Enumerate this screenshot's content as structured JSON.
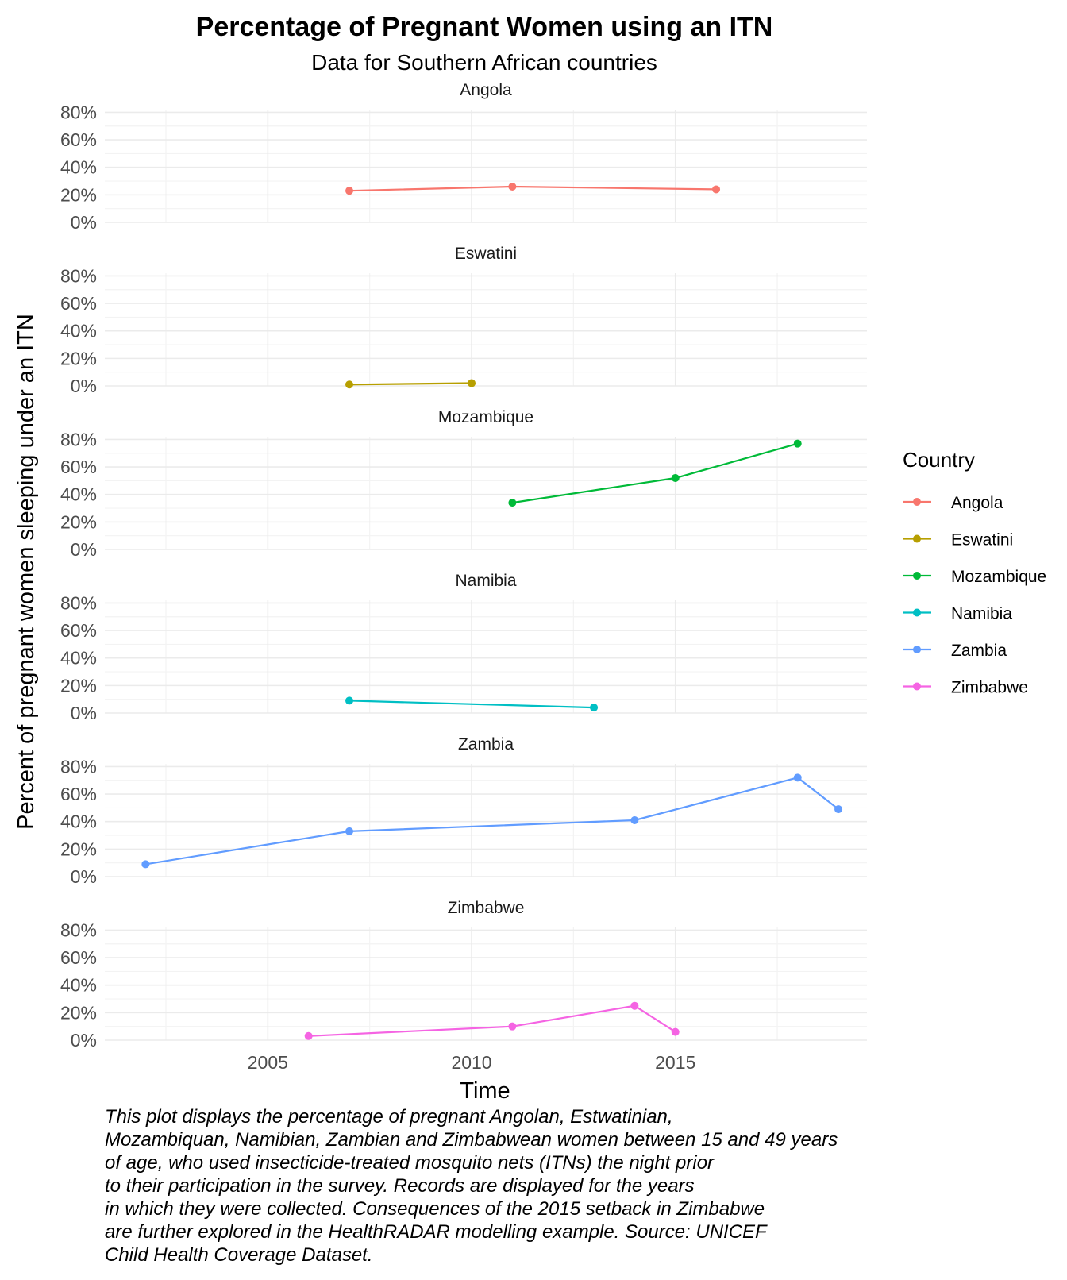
{
  "chart_data": {
    "type": "line",
    "title": "Percentage of Pregnant Women using an ITN",
    "subtitle": "Data for Southern African countries",
    "xlabel": "Time",
    "ylabel": "Percent of pregnant women sleeping under an ITN",
    "xlim": [
      2001.0,
      2019.7
    ],
    "ylim": [
      0,
      82
    ],
    "xticks": [
      2005,
      2010,
      2015
    ],
    "xtick_labels": [
      "2005",
      "2010",
      "2015"
    ],
    "yticks": [
      0,
      20,
      40,
      60,
      80
    ],
    "ytick_labels": [
      "0%",
      "20%",
      "40%",
      "60%",
      "80%"
    ],
    "grid": true,
    "legend": {
      "title": "Country",
      "position": "right"
    },
    "series": [
      {
        "name": "Angola",
        "color": "#F8766D",
        "x": [
          2007,
          2011,
          2016
        ],
        "y": [
          23,
          26,
          24
        ]
      },
      {
        "name": "Eswatini",
        "color": "#B79F00",
        "x": [
          2007,
          2010
        ],
        "y": [
          1,
          2
        ]
      },
      {
        "name": "Mozambique",
        "color": "#00BA38",
        "x": [
          2011,
          2015,
          2018
        ],
        "y": [
          34,
          52,
          77
        ]
      },
      {
        "name": "Namibia",
        "color": "#00BFC4",
        "x": [
          2007,
          2013
        ],
        "y": [
          9,
          4
        ]
      },
      {
        "name": "Zambia",
        "color": "#619CFF",
        "x": [
          2002,
          2007,
          2014,
          2018,
          2019
        ],
        "y": [
          9,
          33,
          41,
          72,
          49
        ]
      },
      {
        "name": "Zimbabwe",
        "color": "#F564E3",
        "x": [
          2006,
          2011,
          2014,
          2015
        ],
        "y": [
          3,
          10,
          25,
          6
        ]
      }
    ]
  },
  "caption": "This plot displays the percentage of pregnant Angolan, Estwatinian,\nMozambiquan, Namibian, Zambian and Zimbabwean women between 15 and 49 years\nof age, who used insecticide-treated mosquito nets (ITNs) the night prior\nto their participation in the survey. Records are displayed for the years\nin which they were collected. Consequences of the 2015 setback in Zimbabwe\nare further explored in the HealthRADAR modelling example. Source: UNICEF\nChild Health Coverage Dataset."
}
